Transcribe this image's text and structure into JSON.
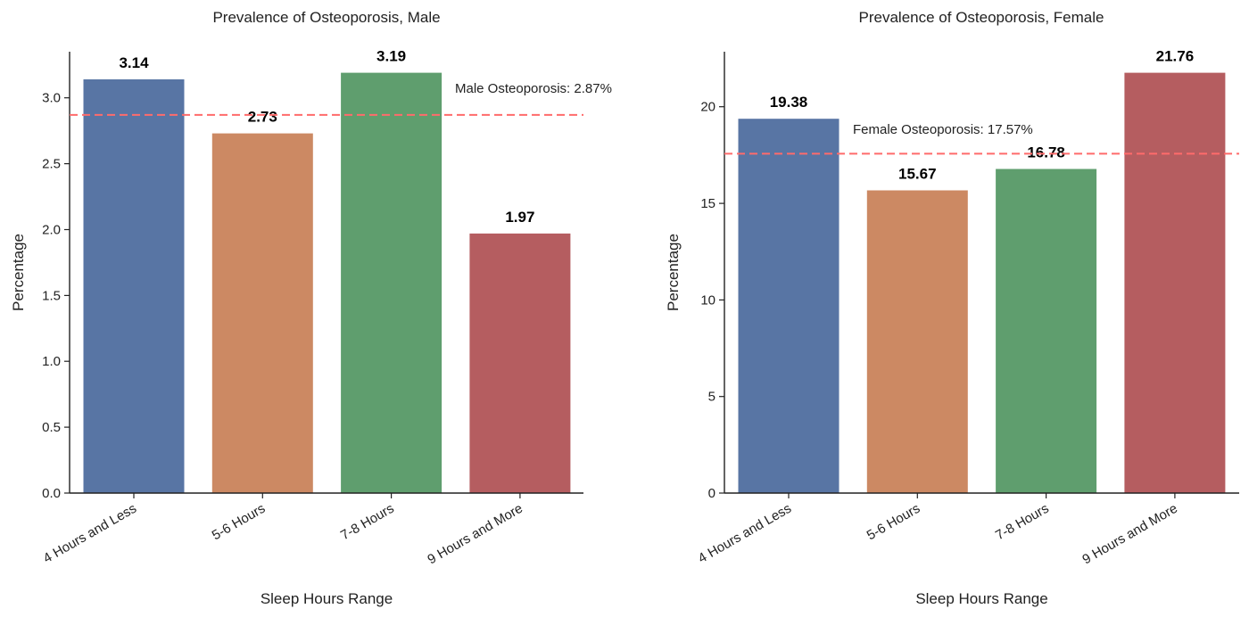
{
  "chart_data": [
    {
      "type": "bar",
      "title": "Prevalence of Osteoporosis, Male",
      "xlabel": "Sleep Hours Range",
      "ylabel": "Percentage",
      "categories": [
        "4 Hours and Less",
        "5-6 Hours",
        "7-8 Hours",
        "9 Hours and More"
      ],
      "values": [
        3.14,
        2.73,
        3.19,
        1.97
      ],
      "value_labels": [
        "3.14",
        "2.73",
        "3.19",
        "1.97"
      ],
      "colors": [
        "#5875a4",
        "#cc8963",
        "#5f9e6e",
        "#b55d60"
      ],
      "ylim": [
        0,
        3.35
      ],
      "yticks": [
        0.0,
        0.5,
        1.0,
        1.5,
        2.0,
        2.5,
        3.0
      ],
      "ytick_labels": [
        "0.0",
        "0.5",
        "1.0",
        "1.5",
        "2.0",
        "2.5",
        "3.0"
      ],
      "reference_line": {
        "value": 2.87,
        "label": "Male Osteoporosis: 2.87%",
        "color": "#ff6b6b",
        "style": "dashed"
      },
      "grid": false,
      "legend": "none"
    },
    {
      "type": "bar",
      "title": "Prevalence of Osteoporosis, Female",
      "xlabel": "Sleep Hours Range",
      "ylabel": "Percentage",
      "categories": [
        "4 Hours and Less",
        "5-6 Hours",
        "7-8 Hours",
        "9 Hours and More"
      ],
      "values": [
        19.38,
        15.67,
        16.78,
        21.76
      ],
      "value_labels": [
        "19.38",
        "15.67",
        "16.78",
        "21.76"
      ],
      "colors": [
        "#5875a4",
        "#cc8963",
        "#5f9e6e",
        "#b55d60"
      ],
      "ylim": [
        0,
        22.85
      ],
      "yticks": [
        0,
        5,
        10,
        15,
        20
      ],
      "ytick_labels": [
        "0",
        "5",
        "10",
        "15",
        "20"
      ],
      "reference_line": {
        "value": 17.57,
        "label": "Female Osteoporosis: 17.57%",
        "color": "#ff6b6b",
        "style": "dashed"
      },
      "grid": false,
      "legend": "none"
    }
  ]
}
